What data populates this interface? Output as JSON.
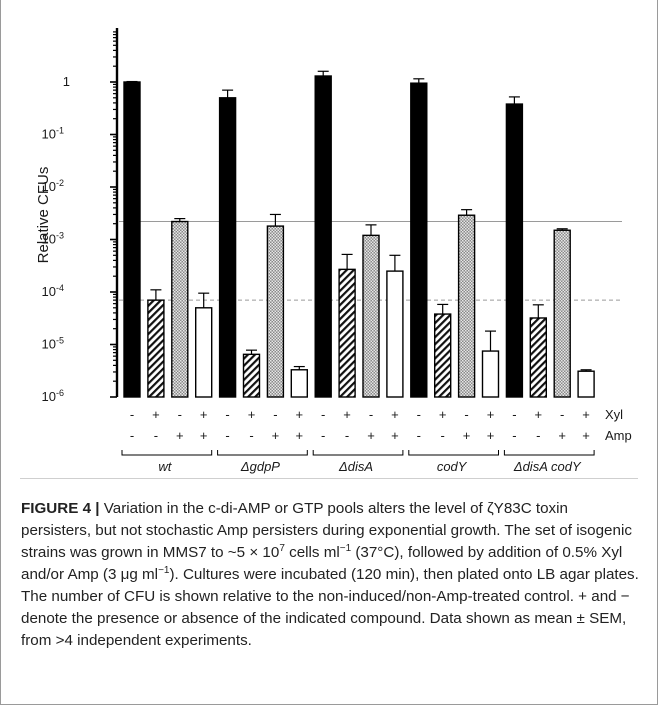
{
  "chart_data": {
    "type": "bar",
    "ylabel": "Relative CFUs",
    "yscale": "log",
    "ylim": [
      1e-06,
      10
    ],
    "ytick_labels": [
      "1",
      "10-1",
      "10-2",
      "10-3",
      "10-4",
      "10-5",
      "10-6"
    ],
    "ytick_values": [
      1,
      0.1,
      0.01,
      0.001,
      0.0001,
      1e-05,
      1e-06
    ],
    "groups": [
      "wt",
      "ΔgdpP",
      "ΔdisA",
      "codY",
      "ΔdisA codY"
    ],
    "conditions": [
      {
        "xyl": "-",
        "amp": "-",
        "style": "black"
      },
      {
        "xyl": "+",
        "amp": "-",
        "style": "hatched"
      },
      {
        "xyl": "-",
        "amp": "+",
        "style": "crosshatched"
      },
      {
        "xyl": "+",
        "amp": "+",
        "style": "white"
      }
    ],
    "row_labels": [
      "Xyl",
      "Amp"
    ],
    "values": [
      [
        1.0,
        7e-05,
        0.0022,
        5e-05
      ],
      [
        0.5,
        6.5e-06,
        0.0018,
        3.3e-06
      ],
      [
        1.3,
        0.00027,
        0.0012,
        0.00025
      ],
      [
        0.95,
        3.8e-05,
        0.0029,
        7.5e-06
      ],
      [
        0.38,
        3.2e-05,
        0.0015,
        3.1e-06
      ]
    ],
    "errors_upper": [
      [
        1.02,
        0.00011,
        0.0025,
        9.5e-05
      ],
      [
        0.7,
        7.8e-06,
        0.003,
        3.8e-06
      ],
      [
        1.6,
        0.00052,
        0.0019,
        0.0005
      ],
      [
        1.15,
        5.8e-05,
        0.0037,
        1.8e-05
      ],
      [
        0.52,
        5.7e-05,
        0.0016,
        3.3e-06
      ]
    ],
    "reference_lines": [
      {
        "value": 0.0022,
        "style": "solid"
      },
      {
        "value": 7e-05,
        "style": "dashed"
      }
    ]
  },
  "caption": {
    "label": "FIGURE 4 |",
    "text": "Variation in the c-di-AMP or GTP pools alters the level of ζY83C toxin persisters, but not stochastic Amp persisters during exponential growth. The set of isogenic strains was grown in MMS7 to ~5 × 10",
    "sup1": "7",
    "text2": " cells ml",
    "sup2": "−1",
    "text3": " (37°C), followed by addition of 0.5% Xyl and/or Amp (3 μg ml",
    "sup3": "−1",
    "text4": "). Cultures were incubated (120 min), then plated onto LB agar plates. The number of CFU is shown relative to the non-induced/non-Amp-treated control. + and − denote the presence or absence of the indicated compound. Data shown as mean ± SEM, from >4 independent experiments."
  },
  "colors": {
    "black_bar": "#000000",
    "hatch": "#111111",
    "crosshatch_bg": "#9c9c9c",
    "white_bar": "#ffffff",
    "reference_line": "#9a9a9a"
  }
}
